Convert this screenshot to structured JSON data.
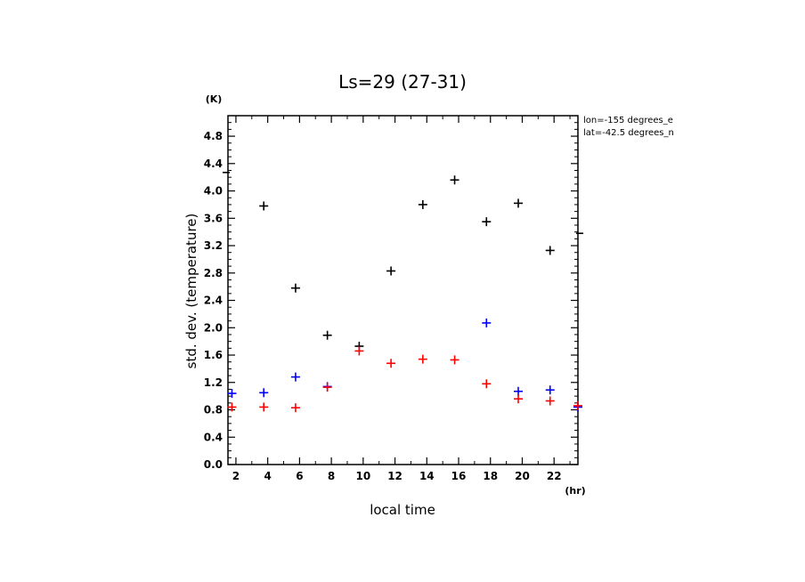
{
  "chart_data": {
    "type": "scatter",
    "title": "Ls=29 (27-31)",
    "xlabel": "local time",
    "ylabel": "std. dev. (temperature)",
    "x_unit": "(hr)",
    "y_unit": "(K)",
    "xlim": [
      1.5,
      23.5
    ],
    "ylim": [
      0,
      5.1
    ],
    "x_ticks": [
      2,
      4,
      6,
      8,
      10,
      12,
      14,
      16,
      18,
      20,
      22
    ],
    "y_ticks": [
      0.0,
      0.4,
      0.8,
      1.2,
      1.6,
      2.0,
      2.4,
      2.8,
      3.2,
      3.6,
      4.0,
      4.4,
      4.8
    ],
    "y_tick_labels": [
      "0.0",
      "0.4",
      "0.8",
      "1.2",
      "1.6",
      "2.0",
      "2.4",
      "2.8",
      "3.2",
      "3.6",
      "4.0",
      "4.4",
      "4.8"
    ],
    "annotations": [
      "lon=-155 degrees_e",
      "lat=-42.5 degrees_n"
    ],
    "series": [
      {
        "color": "#000000",
        "x": [
          3.75,
          5.75,
          7.75,
          9.75,
          11.75,
          13.75,
          15.75,
          17.75,
          19.75,
          21.75
        ],
        "values": [
          3.78,
          2.58,
          1.89,
          1.73,
          2.83,
          3.8,
          4.16,
          3.55,
          3.82,
          3.13
        ],
        "edge_values": {
          "left": 4.27,
          "right": 3.38
        }
      },
      {
        "color": "#0000ff",
        "x": [
          1.75,
          3.75,
          5.75,
          7.75,
          17.75,
          19.75,
          21.75,
          23.5
        ],
        "values": [
          1.04,
          1.05,
          1.28,
          1.14,
          2.07,
          1.07,
          1.09,
          0.84
        ]
      },
      {
        "color": "#ff0000",
        "x": [
          1.75,
          3.75,
          5.75,
          7.75,
          9.75,
          11.75,
          13.75,
          15.75,
          17.75,
          19.75,
          21.75,
          23.5
        ],
        "values": [
          0.84,
          0.84,
          0.83,
          1.13,
          1.66,
          1.48,
          1.54,
          1.53,
          1.18,
          0.96,
          0.93,
          0.86
        ]
      }
    ]
  }
}
